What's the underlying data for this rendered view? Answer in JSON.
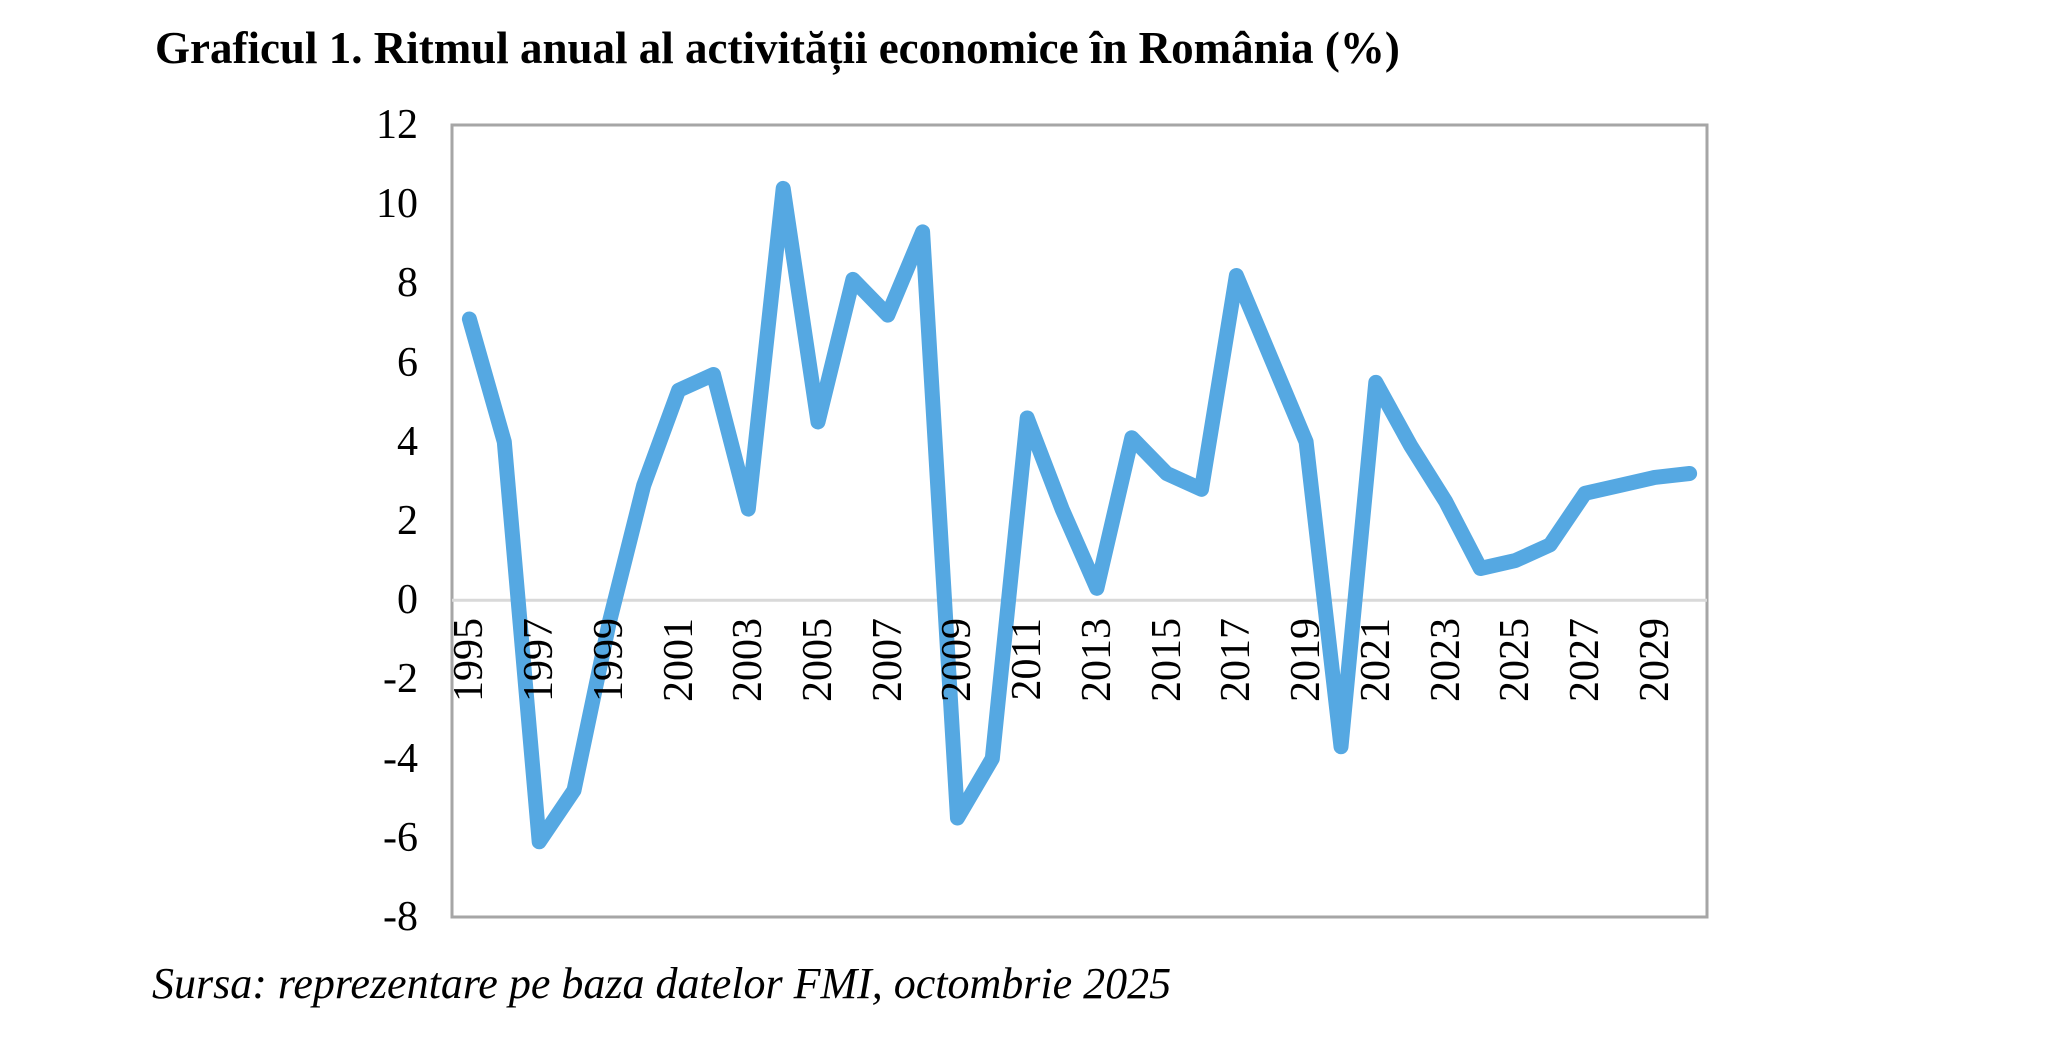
{
  "title": "Graficul 1. Ritmul anual al activității economice în România (%)",
  "source": "Sursa: reprezentare pe baza datelor FMI, octombrie 2025",
  "colors": {
    "line": "#55A8E2",
    "plot_border": "#A6A6A6",
    "zero_gridline": "#D9D9D9",
    "text": "#000000"
  },
  "chart_data": {
    "type": "line",
    "title": "Ritmul anual al activității economice în România (%)",
    "xlabel": "",
    "ylabel": "",
    "x": [
      1995,
      1996,
      1997,
      1998,
      1999,
      2000,
      2001,
      2002,
      2003,
      2004,
      2005,
      2006,
      2007,
      2008,
      2009,
      2010,
      2011,
      2012,
      2013,
      2014,
      2015,
      2016,
      2017,
      2018,
      2019,
      2020,
      2021,
      2022,
      2023,
      2024,
      2025,
      2026,
      2027,
      2028,
      2029,
      2030
    ],
    "values": [
      7.1,
      4.0,
      -6.1,
      -4.8,
      -0.6,
      2.9,
      5.3,
      5.7,
      2.3,
      10.4,
      4.5,
      8.1,
      7.2,
      9.3,
      -5.5,
      -4.0,
      4.6,
      2.3,
      0.3,
      4.1,
      3.2,
      2.8,
      8.2,
      6.1,
      4.0,
      -3.7,
      5.5,
      3.9,
      2.5,
      0.8,
      1.0,
      1.4,
      2.7,
      2.9,
      3.1,
      3.2
    ],
    "series_name": "Ritmul anual (%)",
    "ylim": [
      -8,
      12
    ],
    "y_ticks": [
      12,
      10,
      8,
      6,
      4,
      2,
      0,
      -2,
      -4,
      -6,
      -8
    ],
    "x_tick_labels": [
      "1995",
      "1997",
      "1999",
      "2001",
      "2003",
      "2005",
      "2007",
      "2009",
      "2011",
      "2013",
      "2015",
      "2017",
      "2019",
      "2021",
      "2023",
      "2025",
      "2027",
      "2029"
    ],
    "grid": "horizontal zero line only",
    "legend": "none",
    "line_width": 15
  }
}
